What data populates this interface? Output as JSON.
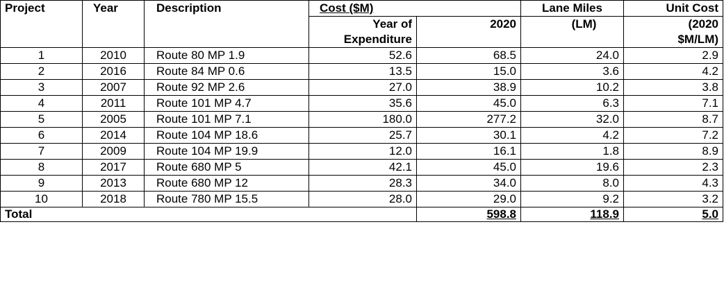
{
  "headers": {
    "project": "Project",
    "year": "Year",
    "description": "Description",
    "cost": "Cost ($M)",
    "cost_yoe_line1": "Year of",
    "cost_yoe_line2": "Expenditure",
    "cost_2020": "2020",
    "lane_miles_line1": "Lane Miles",
    "lane_miles_line2": "(LM)",
    "unit_cost_line1": "Unit Cost",
    "unit_cost_line2": "(2020",
    "unit_cost_line3": "$M/LM)"
  },
  "rows": [
    {
      "project": "1",
      "year": "2010",
      "description": "Route 80 MP 1.9",
      "cost_yoe": "52.6",
      "cost_2020": "68.5",
      "lane_miles": "24.0",
      "unit_cost": "2.9"
    },
    {
      "project": "2",
      "year": "2016",
      "description": "Route 84 MP 0.6",
      "cost_yoe": "13.5",
      "cost_2020": "15.0",
      "lane_miles": "3.6",
      "unit_cost": "4.2"
    },
    {
      "project": "3",
      "year": "2007",
      "description": "Route 92 MP 2.6",
      "cost_yoe": "27.0",
      "cost_2020": "38.9",
      "lane_miles": "10.2",
      "unit_cost": "3.8"
    },
    {
      "project": "4",
      "year": "2011",
      "description": "Route 101 MP 4.7",
      "cost_yoe": "35.6",
      "cost_2020": "45.0",
      "lane_miles": "6.3",
      "unit_cost": "7.1"
    },
    {
      "project": "5",
      "year": "2005",
      "description": "Route 101 MP 7.1",
      "cost_yoe": "180.0",
      "cost_2020": "277.2",
      "lane_miles": "32.0",
      "unit_cost": "8.7"
    },
    {
      "project": "6",
      "year": "2014",
      "description": "Route 104 MP 18.6",
      "cost_yoe": "25.7",
      "cost_2020": "30.1",
      "lane_miles": "4.2",
      "unit_cost": "7.2"
    },
    {
      "project": "7",
      "year": "2009",
      "description": "Route 104 MP 19.9",
      "cost_yoe": "12.0",
      "cost_2020": "16.1",
      "lane_miles": "1.8",
      "unit_cost": "8.9"
    },
    {
      "project": "8",
      "year": "2017",
      "description": "Route 680 MP 5",
      "cost_yoe": "42.1",
      "cost_2020": "45.0",
      "lane_miles": "19.6",
      "unit_cost": "2.3"
    },
    {
      "project": "9",
      "year": "2013",
      "description": "Route 680 MP 12",
      "cost_yoe": "28.3",
      "cost_2020": "34.0",
      "lane_miles": "8.0",
      "unit_cost": "4.3"
    },
    {
      "project": "10",
      "year": "2018",
      "description": "Route 780 MP 15.5",
      "cost_yoe": "28.0",
      "cost_2020": "29.0",
      "lane_miles": "9.2",
      "unit_cost": "3.2"
    }
  ],
  "total": {
    "label": "Total",
    "cost_2020": "598.8",
    "lane_miles": "118.9",
    "unit_cost": "5.0"
  }
}
